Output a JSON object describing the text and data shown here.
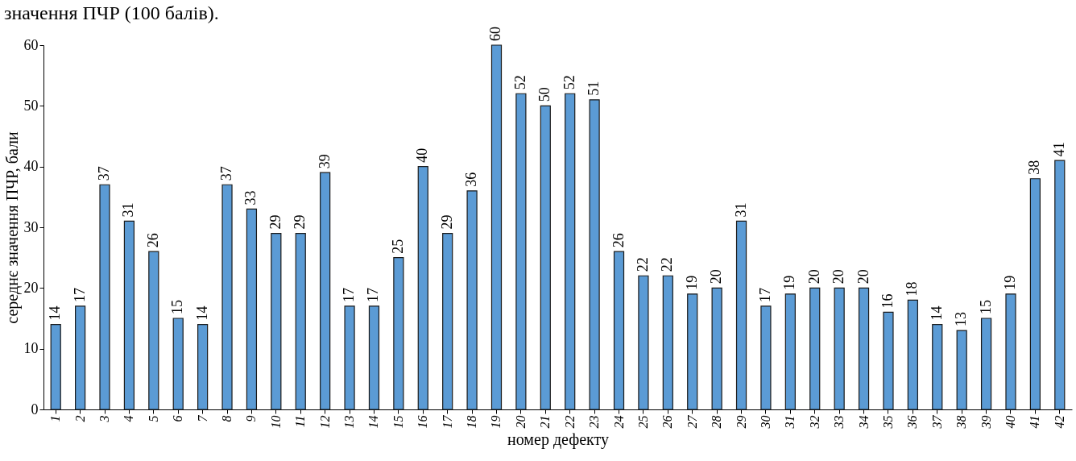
{
  "chart_data": {
    "type": "bar",
    "annotations": [
      "значення ПЧР (100 балів)."
    ],
    "xlabel": "номер дефекту",
    "ylabel": "середнє значення ПЧР, бали",
    "categories": [
      "1",
      "2",
      "3",
      "4",
      "5",
      "6",
      "7",
      "8",
      "9",
      "10",
      "11",
      "12",
      "13",
      "14",
      "15",
      "16",
      "17",
      "18",
      "19",
      "20",
      "21",
      "22",
      "23",
      "24",
      "25",
      "26",
      "27",
      "28",
      "29",
      "30",
      "31",
      "32",
      "33",
      "34",
      "35",
      "36",
      "37",
      "38",
      "39",
      "40",
      "41",
      "42"
    ],
    "values": [
      14,
      17,
      37,
      31,
      26,
      15,
      14,
      37,
      33,
      29,
      29,
      39,
      17,
      17,
      25,
      40,
      29,
      36,
      60,
      52,
      50,
      52,
      51,
      26,
      22,
      22,
      19,
      20,
      31,
      17,
      19,
      20,
      20,
      20,
      16,
      18,
      14,
      13,
      15,
      19,
      38,
      41
    ],
    "color": "#5b9bd5",
    "ylim": [
      0,
      60
    ],
    "yticks": [
      0,
      10,
      20,
      30,
      40,
      50,
      60
    ],
    "grid": false,
    "data_labels": true
  }
}
